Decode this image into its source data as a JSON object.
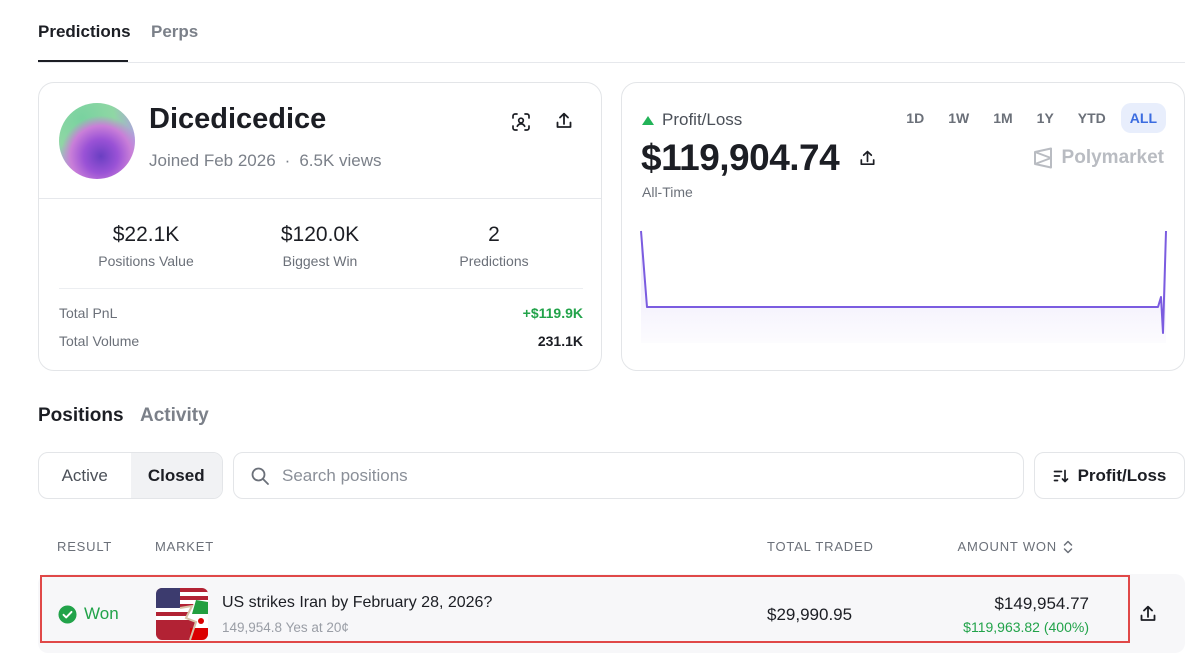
{
  "top_tabs": [
    {
      "label": "Predictions",
      "active": true
    },
    {
      "label": "Perps",
      "active": false
    }
  ],
  "profile": {
    "username": "Dicedicedice",
    "joined": "Joined Feb 2026",
    "views": "6.5K views",
    "stats": [
      {
        "value": "$22.1K",
        "label": "Positions Value"
      },
      {
        "value": "$120.0K",
        "label": "Biggest Win"
      },
      {
        "value": "2",
        "label": "Predictions"
      }
    ],
    "total_pnl_label": "Total PnL",
    "total_pnl_value": "+$119.9K",
    "total_volume_label": "Total Volume",
    "total_volume_value": "231.1K"
  },
  "pnl": {
    "label": "Profit/Loss",
    "value": "$119,904.74",
    "period": "All-Time",
    "brand": "Polymarket",
    "ranges": [
      "1D",
      "1W",
      "1M",
      "1Y",
      "YTD",
      "ALL"
    ],
    "active_range": "ALL",
    "line_color": "#7b5ce0"
  },
  "positions": {
    "section_tabs": [
      "Positions",
      "Activity"
    ],
    "filter_options": [
      "Active",
      "Closed"
    ],
    "active_filter": "Closed",
    "search_placeholder": "Search positions",
    "sort_label": "Profit/Loss",
    "columns": {
      "result": "RESULT",
      "market": "MARKET",
      "total_traded": "TOTAL TRADED",
      "amount_won": "AMOUNT WON"
    },
    "rows": [
      {
        "result": "Won",
        "market_title": "US strikes Iran by February 28, 2026?",
        "market_sub": "149,954.8 Yes at 20¢",
        "total_traded": "$29,990.95",
        "amount_won": "$149,954.77",
        "profit": "$119,963.82 (400%)"
      }
    ]
  },
  "colors": {
    "accent": "#3b6ce0",
    "positive": "#22a34a",
    "highlight": "#e04848"
  }
}
